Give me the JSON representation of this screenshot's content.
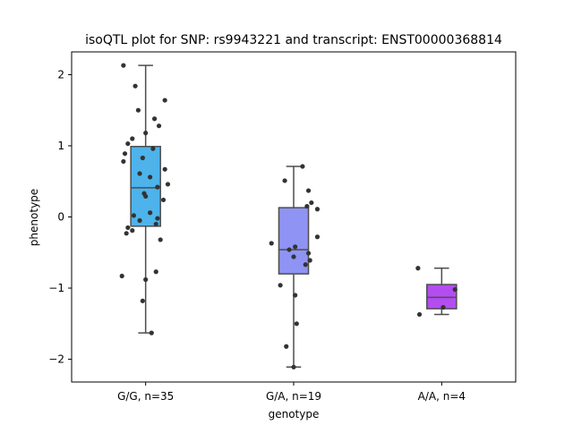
{
  "chart_data": {
    "type": "box",
    "title": "isoQTL plot for SNP: rs9943221 and transcript: ENST00000368814",
    "xlabel": "genotype",
    "ylabel": "phenotype",
    "ylim": [
      -2.32,
      2.32
    ],
    "yticks": [
      2,
      1,
      0,
      -1,
      -2
    ],
    "ytick_labels": [
      "2",
      "1",
      "0",
      "−1",
      "−2"
    ],
    "grid": false,
    "categories": [
      "G/G, n=35",
      "G/A, n=19",
      "A/A, n=4"
    ],
    "boxes": [
      {
        "category": "G/G, n=35",
        "color": "#4db3ea",
        "whisker_low": -1.63,
        "q1": -0.13,
        "median": 0.41,
        "q3": 0.99,
        "whisker_high": 2.13
      },
      {
        "category": "G/A, n=19",
        "color": "#8f93f3",
        "whisker_low": -2.11,
        "q1": -0.8,
        "median": -0.46,
        "q3": 0.13,
        "whisker_high": 0.71
      },
      {
        "category": "A/A, n=4",
        "color": "#b44df0",
        "whisker_low": -1.37,
        "q1": -1.29,
        "median": -1.13,
        "q3": -0.95,
        "whisker_high": -0.72
      }
    ],
    "points": [
      [
        {
          "dx": -0.15,
          "y": 2.13
        },
        {
          "dx": -0.07,
          "y": 1.84
        },
        {
          "dx": 0.13,
          "y": 1.64
        },
        {
          "dx": -0.05,
          "y": 1.5
        },
        {
          "dx": 0.06,
          "y": 1.38
        },
        {
          "dx": 0.09,
          "y": 1.28
        },
        {
          "dx": 0.0,
          "y": 1.18
        },
        {
          "dx": -0.09,
          "y": 1.1
        },
        {
          "dx": -0.12,
          "y": 1.03
        },
        {
          "dx": 0.05,
          "y": 0.96
        },
        {
          "dx": -0.14,
          "y": 0.89
        },
        {
          "dx": -0.02,
          "y": 0.83
        },
        {
          "dx": -0.15,
          "y": 0.78
        },
        {
          "dx": 0.13,
          "y": 0.67
        },
        {
          "dx": -0.04,
          "y": 0.61
        },
        {
          "dx": 0.03,
          "y": 0.56
        },
        {
          "dx": 0.15,
          "y": 0.46
        },
        {
          "dx": 0.08,
          "y": 0.42
        },
        {
          "dx": -0.01,
          "y": 0.33
        },
        {
          "dx": 0.0,
          "y": 0.29
        },
        {
          "dx": 0.12,
          "y": 0.24
        },
        {
          "dx": 0.03,
          "y": 0.06
        },
        {
          "dx": -0.08,
          "y": 0.02
        },
        {
          "dx": 0.08,
          "y": -0.02
        },
        {
          "dx": -0.04,
          "y": -0.05
        },
        {
          "dx": 0.07,
          "y": -0.1
        },
        {
          "dx": -0.12,
          "y": -0.15
        },
        {
          "dx": -0.09,
          "y": -0.19
        },
        {
          "dx": -0.13,
          "y": -0.23
        },
        {
          "dx": 0.1,
          "y": -0.32
        },
        {
          "dx": 0.07,
          "y": -0.77
        },
        {
          "dx": -0.16,
          "y": -0.83
        },
        {
          "dx": 0.0,
          "y": -0.88
        },
        {
          "dx": -0.02,
          "y": -1.18
        },
        {
          "dx": 0.04,
          "y": -1.63
        }
      ],
      [
        {
          "dx": 0.06,
          "y": 0.71
        },
        {
          "dx": -0.06,
          "y": 0.51
        },
        {
          "dx": 0.1,
          "y": 0.37
        },
        {
          "dx": 0.12,
          "y": 0.2
        },
        {
          "dx": 0.09,
          "y": 0.15
        },
        {
          "dx": 0.16,
          "y": 0.11
        },
        {
          "dx": 0.16,
          "y": -0.28
        },
        {
          "dx": -0.15,
          "y": -0.37
        },
        {
          "dx": 0.01,
          "y": -0.42
        },
        {
          "dx": -0.03,
          "y": -0.46
        },
        {
          "dx": 0.1,
          "y": -0.51
        },
        {
          "dx": 0.0,
          "y": -0.56
        },
        {
          "dx": 0.11,
          "y": -0.61
        },
        {
          "dx": 0.08,
          "y": -0.67
        },
        {
          "dx": -0.09,
          "y": -0.96
        },
        {
          "dx": 0.01,
          "y": -1.1
        },
        {
          "dx": 0.02,
          "y": -1.5
        },
        {
          "dx": -0.05,
          "y": -1.82
        },
        {
          "dx": 0.0,
          "y": -2.11
        }
      ],
      [
        {
          "dx": -0.16,
          "y": -0.72
        },
        {
          "dx": 0.09,
          "y": -1.02
        },
        {
          "dx": 0.01,
          "y": -1.27
        },
        {
          "dx": -0.15,
          "y": -1.37
        }
      ]
    ],
    "point_color": "#333333",
    "line_color": "#4d4d4d"
  }
}
